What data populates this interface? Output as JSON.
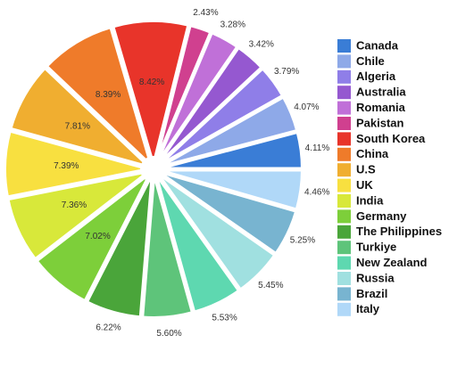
{
  "chart_data": {
    "type": "pie",
    "categories": [
      "Canada",
      "Chile",
      "Algeria",
      "Australia",
      "Romania",
      "Pakistan",
      "South Korea",
      "China",
      "U.S",
      "UK",
      "India",
      "Germany",
      "The Philippines",
      "Turkiye",
      "New Zealand",
      "Russia",
      "Brazil",
      "Italy"
    ],
    "values": [
      4.11,
      4.07,
      3.79,
      3.42,
      3.28,
      2.43,
      8.42,
      8.39,
      7.81,
      7.39,
      7.36,
      7.02,
      6.22,
      5.6,
      5.53,
      5.45,
      5.25,
      4.46
    ],
    "value_labels": [
      "4.11%",
      "4.07%",
      "3.79%",
      "3.42%",
      "3.28%",
      "2.43%",
      "8.42%",
      "8.39%",
      "7.81%",
      "7.39%",
      "7.36%",
      "7.02%",
      "6.22%",
      "5.60%",
      "5.53%",
      "5.45%",
      "5.25%",
      "4.46%"
    ],
    "colors": [
      "#3a7dd6",
      "#8ea9e8",
      "#8f7ee8",
      "#9558d0",
      "#c070d8",
      "#d0408f",
      "#e8342a",
      "#ef7b2a",
      "#f0ae30",
      "#f8e040",
      "#d8e83a",
      "#7dcf3a",
      "#4aa53a",
      "#5ec47a",
      "#5ed8b0",
      "#a0e0e0",
      "#78b4d0",
      "#b0d8f8"
    ],
    "legend": "right"
  }
}
